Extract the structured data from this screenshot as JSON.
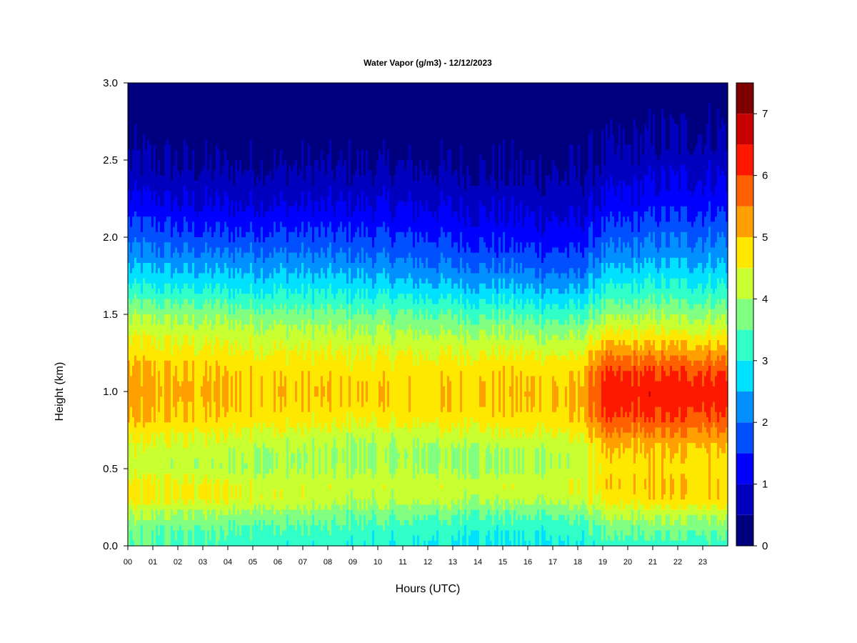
{
  "chart_data": {
    "type": "heatmap",
    "title": "Water Vapor (g/m3) - 12/12/2023",
    "xlabel": "Hours (UTC)",
    "ylabel": "Height (km)",
    "xlim": [
      0,
      24
    ],
    "ylim": [
      0.0,
      3.0
    ],
    "x_ticks": [
      "00",
      "01",
      "02",
      "03",
      "04",
      "05",
      "06",
      "07",
      "08",
      "09",
      "10",
      "11",
      "12",
      "13",
      "14",
      "15",
      "16",
      "17",
      "18",
      "19",
      "20",
      "21",
      "22",
      "23"
    ],
    "y_ticks": [
      "0.0",
      "0.5",
      "1.0",
      "1.5",
      "2.0",
      "2.5",
      "3.0"
    ],
    "grid": false,
    "legend": "colorbar-right",
    "colorbar": {
      "ticks": [
        "0",
        "1",
        "2",
        "3",
        "4",
        "5",
        "6",
        "7"
      ],
      "levels": [
        0,
        0.5,
        1,
        1.5,
        2,
        2.5,
        3,
        3.5,
        4,
        4.5,
        5,
        5.5,
        6,
        6.5,
        7,
        7.5
      ],
      "colors": [
        "#00007f",
        "#0000be",
        "#0000ff",
        "#0050ff",
        "#0090ff",
        "#00e0ff",
        "#30ffc8",
        "#80ff80",
        "#c8ff30",
        "#ffe800",
        "#ffa000",
        "#ff6000",
        "#ff1800",
        "#c80000",
        "#7f0000"
      ]
    },
    "profile_heights_km": [
      0.0,
      0.1,
      0.2,
      0.3,
      0.4,
      0.5,
      0.6,
      0.7,
      0.8,
      0.9,
      1.0,
      1.1,
      1.2,
      1.3,
      1.4,
      1.5,
      1.6,
      1.7,
      1.8,
      1.9,
      2.0,
      2.1,
      2.2,
      2.3,
      2.4,
      2.5,
      2.6,
      2.7,
      2.8,
      2.9,
      3.0
    ],
    "profiles": [
      {
        "hour": 0,
        "values": [
          3.4,
          3.6,
          4.0,
          4.6,
          4.6,
          4.2,
          4.3,
          4.5,
          4.9,
          5.1,
          5.2,
          5.1,
          4.9,
          4.6,
          4.3,
          3.9,
          3.4,
          2.9,
          2.5,
          2.1,
          1.8,
          1.5,
          1.2,
          0.9,
          0.7,
          0.5,
          0.4,
          0.3,
          0.2,
          0.15,
          0.1
        ]
      },
      {
        "hour": 3,
        "values": [
          3.3,
          3.5,
          3.9,
          4.6,
          4.6,
          4.1,
          4.2,
          4.4,
          4.8,
          5.0,
          5.1,
          5.0,
          4.8,
          4.5,
          4.2,
          3.8,
          3.3,
          2.8,
          2.4,
          2.0,
          1.6,
          1.3,
          1.0,
          0.8,
          0.6,
          0.4,
          0.3,
          0.2,
          0.15,
          0.1,
          0.1
        ]
      },
      {
        "hour": 6,
        "values": [
          3.2,
          3.4,
          3.8,
          4.4,
          4.3,
          4.0,
          4.0,
          4.3,
          4.7,
          4.9,
          5.0,
          4.9,
          4.7,
          4.4,
          4.1,
          3.7,
          3.2,
          2.8,
          2.4,
          2.0,
          1.6,
          1.3,
          1.0,
          0.8,
          0.6,
          0.4,
          0.3,
          0.2,
          0.15,
          0.1,
          0.1
        ]
      },
      {
        "hour": 9,
        "values": [
          3.1,
          3.3,
          3.6,
          4.1,
          4.3,
          4.0,
          3.9,
          4.1,
          4.5,
          4.8,
          4.9,
          4.8,
          4.6,
          4.3,
          4.0,
          3.6,
          3.1,
          2.7,
          2.3,
          1.9,
          1.6,
          1.3,
          1.0,
          0.8,
          0.6,
          0.4,
          0.3,
          0.2,
          0.15,
          0.1,
          0.1
        ]
      },
      {
        "hour": 12,
        "values": [
          3.0,
          3.2,
          3.6,
          4.2,
          4.3,
          4.0,
          3.9,
          4.2,
          4.6,
          4.9,
          4.9,
          4.8,
          4.6,
          4.3,
          3.9,
          3.5,
          3.0,
          2.5,
          2.1,
          1.8,
          1.5,
          1.2,
          1.0,
          0.8,
          0.6,
          0.4,
          0.3,
          0.2,
          0.15,
          0.1,
          0.1
        ]
      },
      {
        "hour": 15,
        "values": [
          2.9,
          3.1,
          3.5,
          4.1,
          4.3,
          4.0,
          4.0,
          4.3,
          4.7,
          4.9,
          5.0,
          4.9,
          4.7,
          4.3,
          3.9,
          3.4,
          2.9,
          2.4,
          2.0,
          1.6,
          1.3,
          1.1,
          0.9,
          0.7,
          0.5,
          0.4,
          0.3,
          0.2,
          0.15,
          0.1,
          0.1
        ]
      },
      {
        "hour": 18,
        "values": [
          3.0,
          3.2,
          3.6,
          4.2,
          4.4,
          4.1,
          4.1,
          4.4,
          4.8,
          5.0,
          5.0,
          4.9,
          4.6,
          4.2,
          3.7,
          3.2,
          2.7,
          2.2,
          1.8,
          1.5,
          1.2,
          1.0,
          0.8,
          0.6,
          0.5,
          0.4,
          0.3,
          0.2,
          0.15,
          0.1,
          0.1
        ]
      },
      {
        "hour": 19,
        "values": [
          3.2,
          3.5,
          4.0,
          4.6,
          4.8,
          4.7,
          4.8,
          5.2,
          5.7,
          6.1,
          6.2,
          6.0,
          5.6,
          5.0,
          4.4,
          3.8,
          3.3,
          2.8,
          2.4,
          2.0,
          1.7,
          1.4,
          1.1,
          0.9,
          0.7,
          0.5,
          0.4,
          0.3,
          0.2,
          0.15,
          0.1
        ]
      },
      {
        "hour": 21,
        "values": [
          3.2,
          3.6,
          4.1,
          4.8,
          4.9,
          4.8,
          4.9,
          5.3,
          5.8,
          6.2,
          6.3,
          6.1,
          5.6,
          5.0,
          4.4,
          3.9,
          3.4,
          3.0,
          2.6,
          2.2,
          1.9,
          1.6,
          1.3,
          1.1,
          0.9,
          0.7,
          0.5,
          0.4,
          0.3,
          0.2,
          0.15
        ]
      },
      {
        "hour": 24,
        "values": [
          3.3,
          3.7,
          4.2,
          4.9,
          4.9,
          4.8,
          4.9,
          5.3,
          5.8,
          6.2,
          6.3,
          6.1,
          5.6,
          5.0,
          4.4,
          3.9,
          3.4,
          3.0,
          2.6,
          2.3,
          2.0,
          1.7,
          1.4,
          1.2,
          1.0,
          0.8,
          0.6,
          0.5,
          0.4,
          0.3,
          0.2
        ]
      }
    ]
  }
}
